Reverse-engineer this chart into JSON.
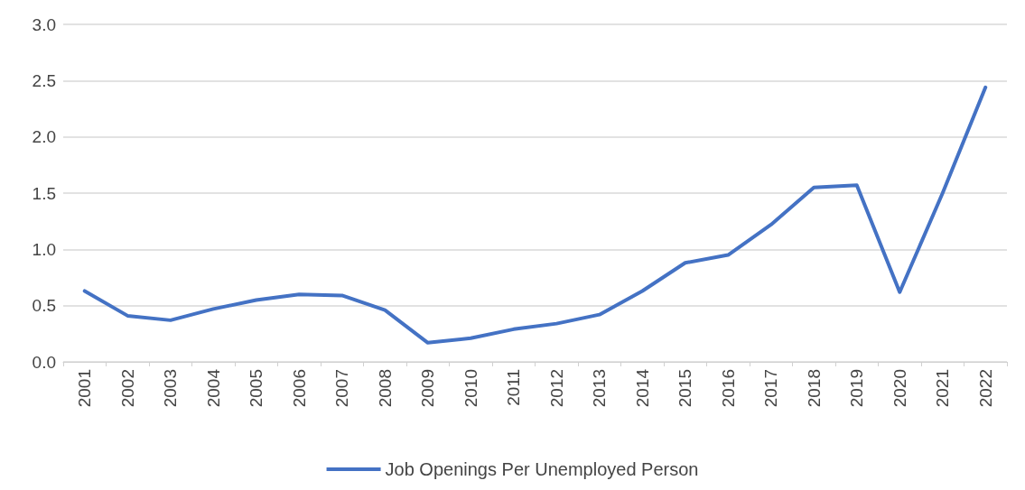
{
  "chart_data": {
    "type": "line",
    "categories": [
      "2001",
      "2002",
      "2003",
      "2004",
      "2005",
      "2006",
      "2007",
      "2008",
      "2009",
      "2010",
      "2011",
      "2012",
      "2013",
      "2014",
      "2015",
      "2016",
      "2017",
      "2018",
      "2019",
      "2020",
      "2021",
      "2022"
    ],
    "series": [
      {
        "name": "Job Openings Per Unemployed Person",
        "color": "#4472c4",
        "values": [
          0.63,
          0.41,
          0.37,
          0.47,
          0.55,
          0.6,
          0.59,
          0.46,
          0.17,
          0.21,
          0.29,
          0.34,
          0.42,
          0.63,
          0.88,
          0.95,
          1.22,
          1.55,
          1.57,
          0.62,
          1.5,
          2.44
        ]
      }
    ],
    "ylim": [
      0,
      3
    ],
    "yticks": [
      {
        "value": 0,
        "label": "0.0"
      },
      {
        "value": 0.5,
        "label": "0.5"
      },
      {
        "value": 1,
        "label": "1.0"
      },
      {
        "value": 1.5,
        "label": "1.5"
      },
      {
        "value": 2,
        "label": "2.0"
      },
      {
        "value": 2.5,
        "label": "2.5"
      },
      {
        "value": 3,
        "label": "3.0"
      }
    ],
    "grid": "y",
    "legend": "bottom",
    "marker": "none",
    "line_style": "solid"
  }
}
